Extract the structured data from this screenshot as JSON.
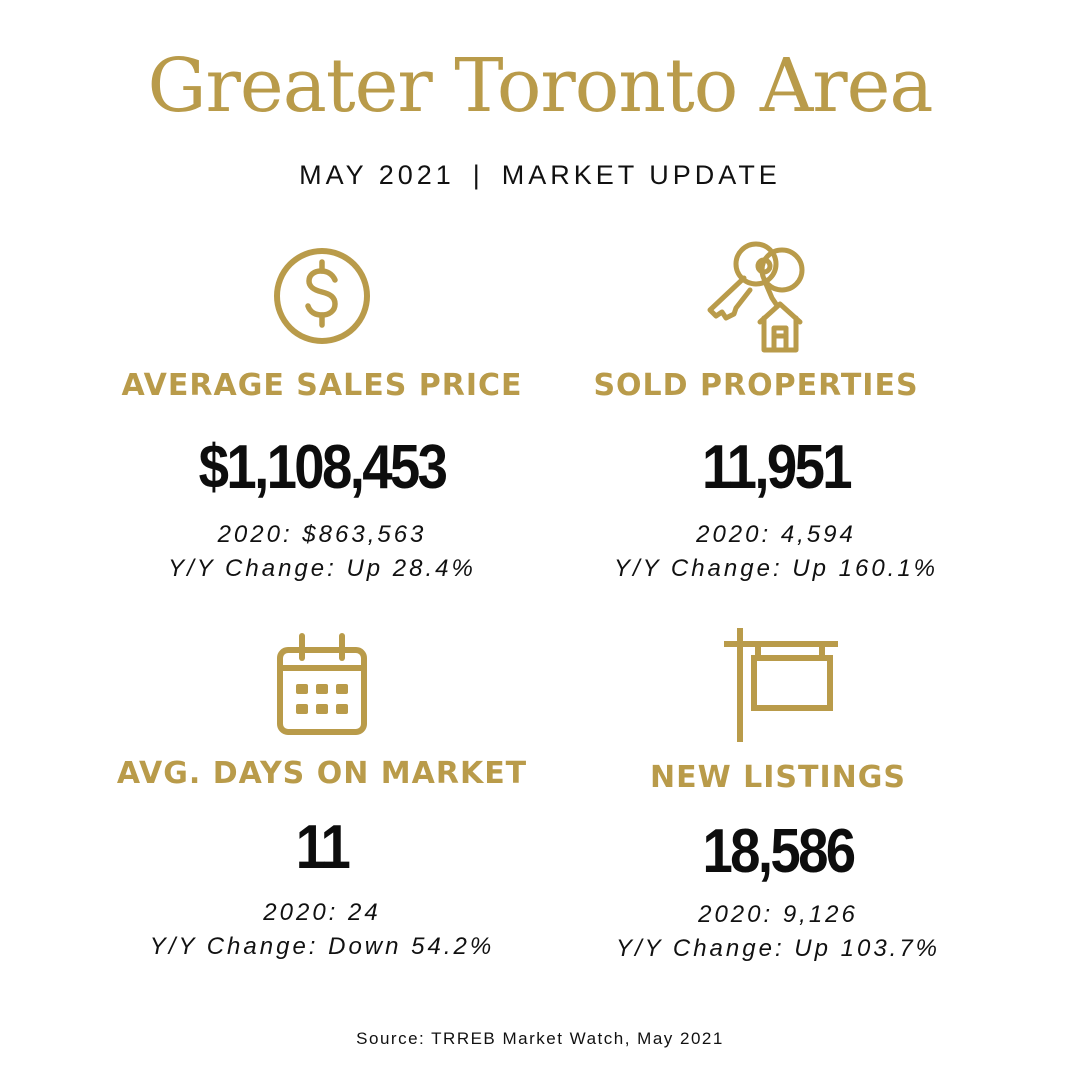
{
  "header": {
    "title": "Greater Toronto Area",
    "date": "MAY 2021",
    "separator": "|",
    "subtitle": "MARKET UPDATE"
  },
  "colors": {
    "accent": "#b99b4a",
    "text": "#111111"
  },
  "stats": [
    {
      "icon": "dollar-circle-icon",
      "label": "AVERAGE SALES PRICE",
      "value": "$1,108,453",
      "prior": "2020: $863,563",
      "change": "Y/Y Change: Up 28.4%"
    },
    {
      "icon": "keys-house-icon",
      "label": "SOLD PROPERTIES",
      "value": "11,951",
      "prior": "2020: 4,594",
      "change": "Y/Y Change: Up 160.1%"
    },
    {
      "icon": "calendar-icon",
      "label": "AVG. DAYS ON MARKET",
      "value": "11",
      "prior": "2020: 24",
      "change": "Y/Y Change: Down 54.2%"
    },
    {
      "icon": "hanging-sign-icon",
      "label": "NEW LISTINGS",
      "value": "18,586",
      "prior": "2020: 9,126",
      "change": "Y/Y Change: Up 103.7%"
    }
  ],
  "footer": {
    "source": "Source: TRREB Market Watch, May 2021"
  }
}
